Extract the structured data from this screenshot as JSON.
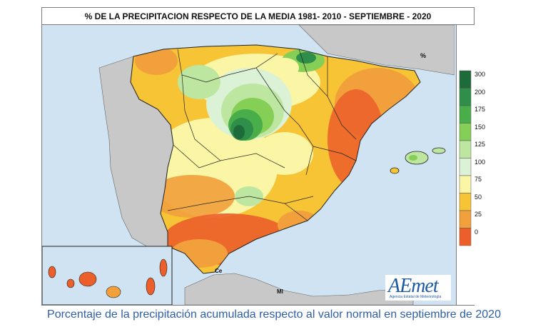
{
  "map": {
    "title": "% DE LA PRECIPITACION RESPECTO DE LA MEDIA 1981- 2010 - SEPTIEMBRE - 2020",
    "colors": {
      "sea": "#cfe3f3",
      "neighbor_land": "#c8c8c8",
      "border": "#222222"
    },
    "places": {
      "ceuta": "Ce",
      "melilla": "Ml"
    }
  },
  "legend": {
    "unit": "%",
    "classes": [
      {
        "label": "300",
        "color": "#1e6b3a"
      },
      {
        "label": "200",
        "color": "#2f8f4a"
      },
      {
        "label": "175",
        "color": "#49ad49"
      },
      {
        "label": "150",
        "color": "#86cf56"
      },
      {
        "label": "125",
        "color": "#bde6a0"
      },
      {
        "label": "100",
        "color": "#dcf2d6"
      },
      {
        "label": "75",
        "color": "#fbf5a6"
      },
      {
        "label": "50",
        "color": "#f6c434"
      },
      {
        "label": "25",
        "color": "#f2a03c"
      },
      {
        "label": "0",
        "color": "#ec5e2a"
      }
    ]
  },
  "logo": {
    "text": "AEmet",
    "subtitle": "Agencia Estatal de Meteorología"
  },
  "caption": "Porcentaje de la precipitación acumulada respecto al valor normal en septiembre de 2020"
}
